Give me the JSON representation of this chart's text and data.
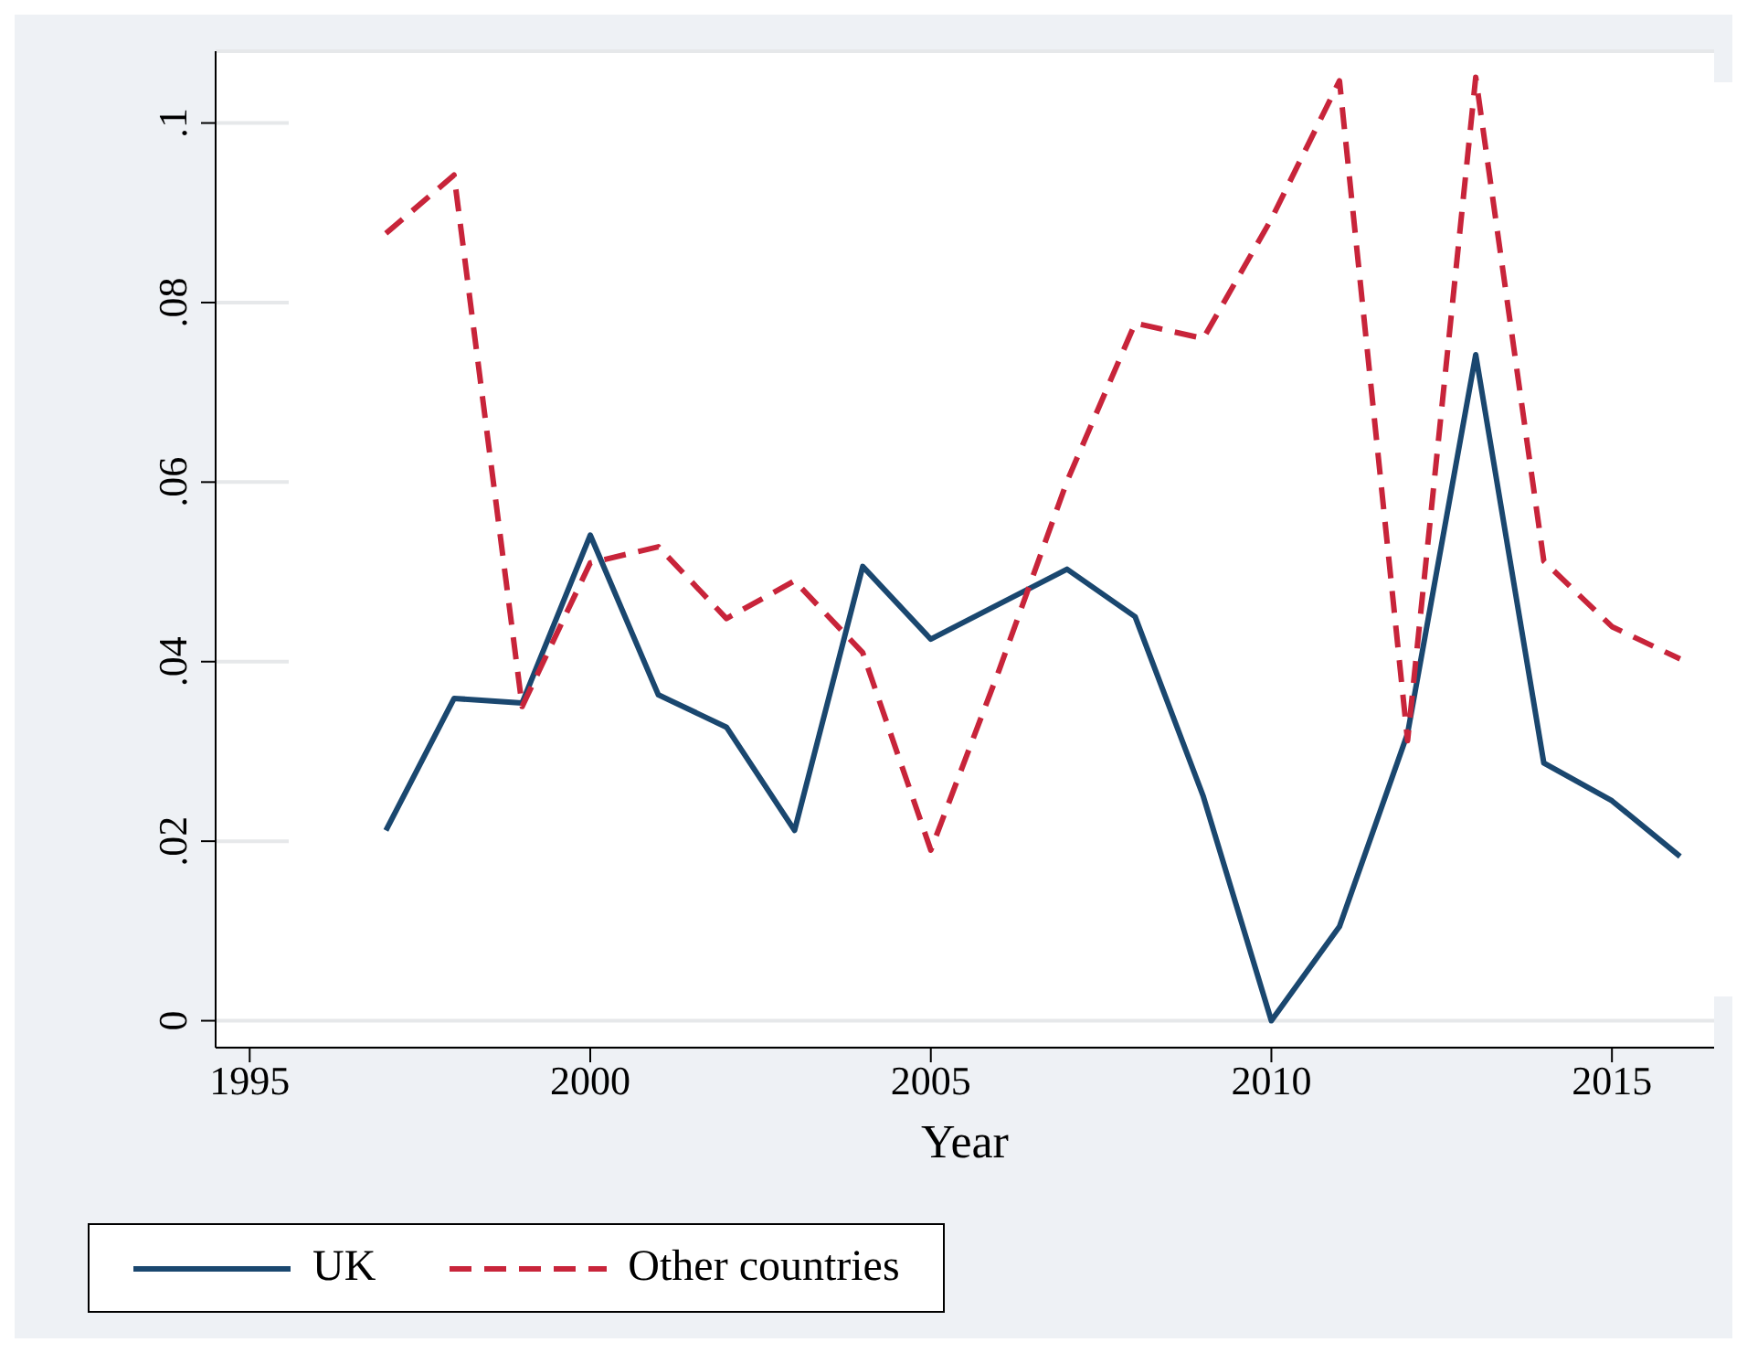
{
  "chart_data": {
    "type": "line",
    "xlabel": "Year",
    "x": [
      1997,
      1998,
      1999,
      2000,
      2001,
      2002,
      2003,
      2004,
      2005,
      2006,
      2007,
      2008,
      2009,
      2010,
      2011,
      2012,
      2013,
      2014,
      2015,
      2016
    ],
    "series": [
      {
        "name": "UK",
        "color": "#1a476f",
        "line_style": "solid",
        "values": [
          0.0212,
          0.0359,
          0.0354,
          0.0541,
          0.0363,
          0.0327,
          0.0212,
          0.0506,
          0.0425,
          0.0464,
          0.0503,
          0.045,
          0.025,
          0,
          0.0105,
          0.032,
          0.0742,
          0.0287,
          0.0245,
          0.0183
        ]
      },
      {
        "name": "Other countries",
        "color": "#c8243a",
        "line_style": "dashed",
        "values": [
          0.0877,
          0.0942,
          0.035,
          0.051,
          0.0528,
          0.0448,
          0.049,
          0.041,
          0.019,
          0.039,
          0.0601,
          0.0777,
          0.076,
          0.0893,
          0.1047,
          0.0312,
          0.1051,
          0.0512,
          0.0439,
          0.0403
        ]
      }
    ],
    "xlim": [
      1994.5,
      2016.5
    ],
    "xticks": [
      1995,
      2000,
      2005,
      2010,
      2015
    ],
    "ylim": [
      -0.003,
      0.108
    ],
    "yticks": [
      {
        "value": 0,
        "label": "0"
      },
      {
        "value": 0.02,
        "label": ".02"
      },
      {
        "value": 0.04,
        "label": ".04"
      },
      {
        "value": 0.06,
        "label": ".06"
      },
      {
        "value": 0.08,
        "label": ".08"
      },
      {
        "value": 0.1,
        "label": ".1"
      }
    ],
    "grid": "y",
    "legend": "bottom",
    "marker": "none"
  }
}
